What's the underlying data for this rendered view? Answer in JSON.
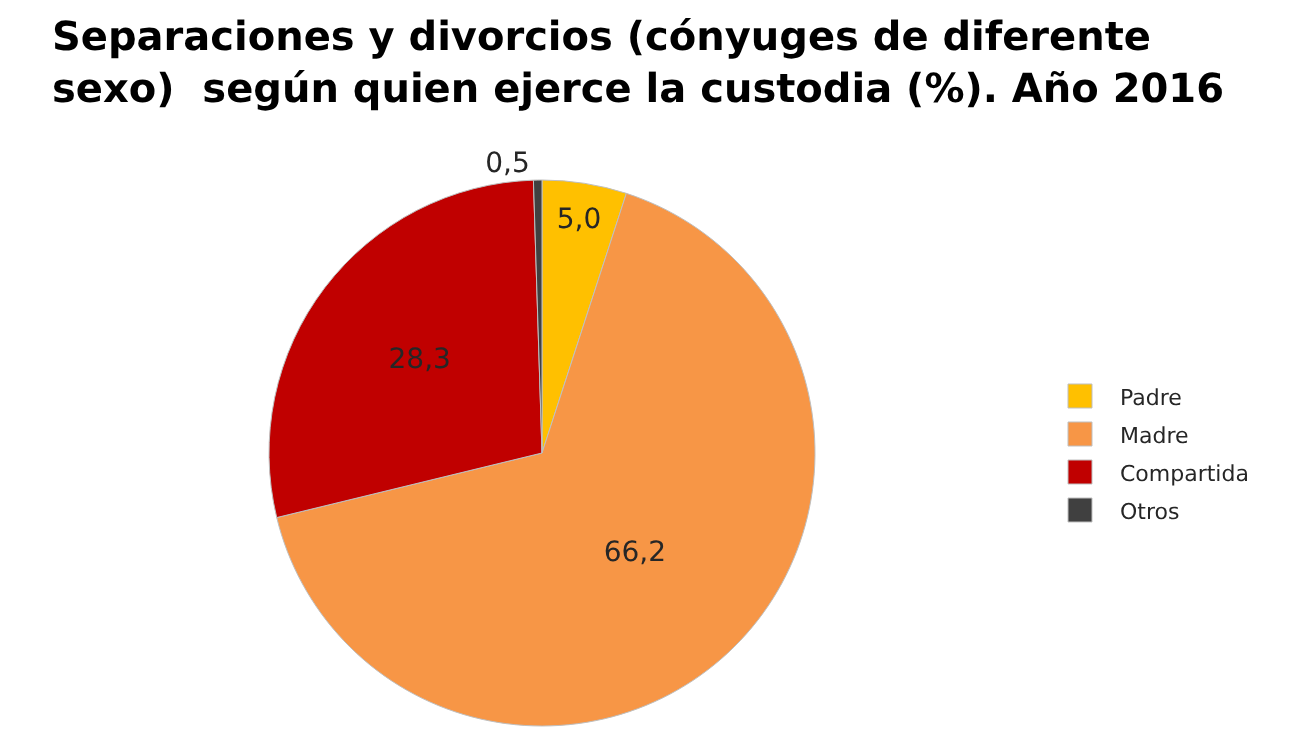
{
  "chart_data": {
    "type": "pie",
    "title": "Separaciones y divorcios (cónyuges de diferente sexo)  según quien ejerce la custodia (%). Año 2016",
    "categories": [
      "Padre",
      "Madre",
      "Compartida",
      "Otros"
    ],
    "values": [
      5.0,
      66.2,
      28.3,
      0.5
    ],
    "value_labels": [
      "5,0",
      "66,2",
      "28,3",
      "0,5"
    ],
    "colors": [
      "#ffc000",
      "#f79646",
      "#c00000",
      "#404040"
    ],
    "legend": "right"
  }
}
